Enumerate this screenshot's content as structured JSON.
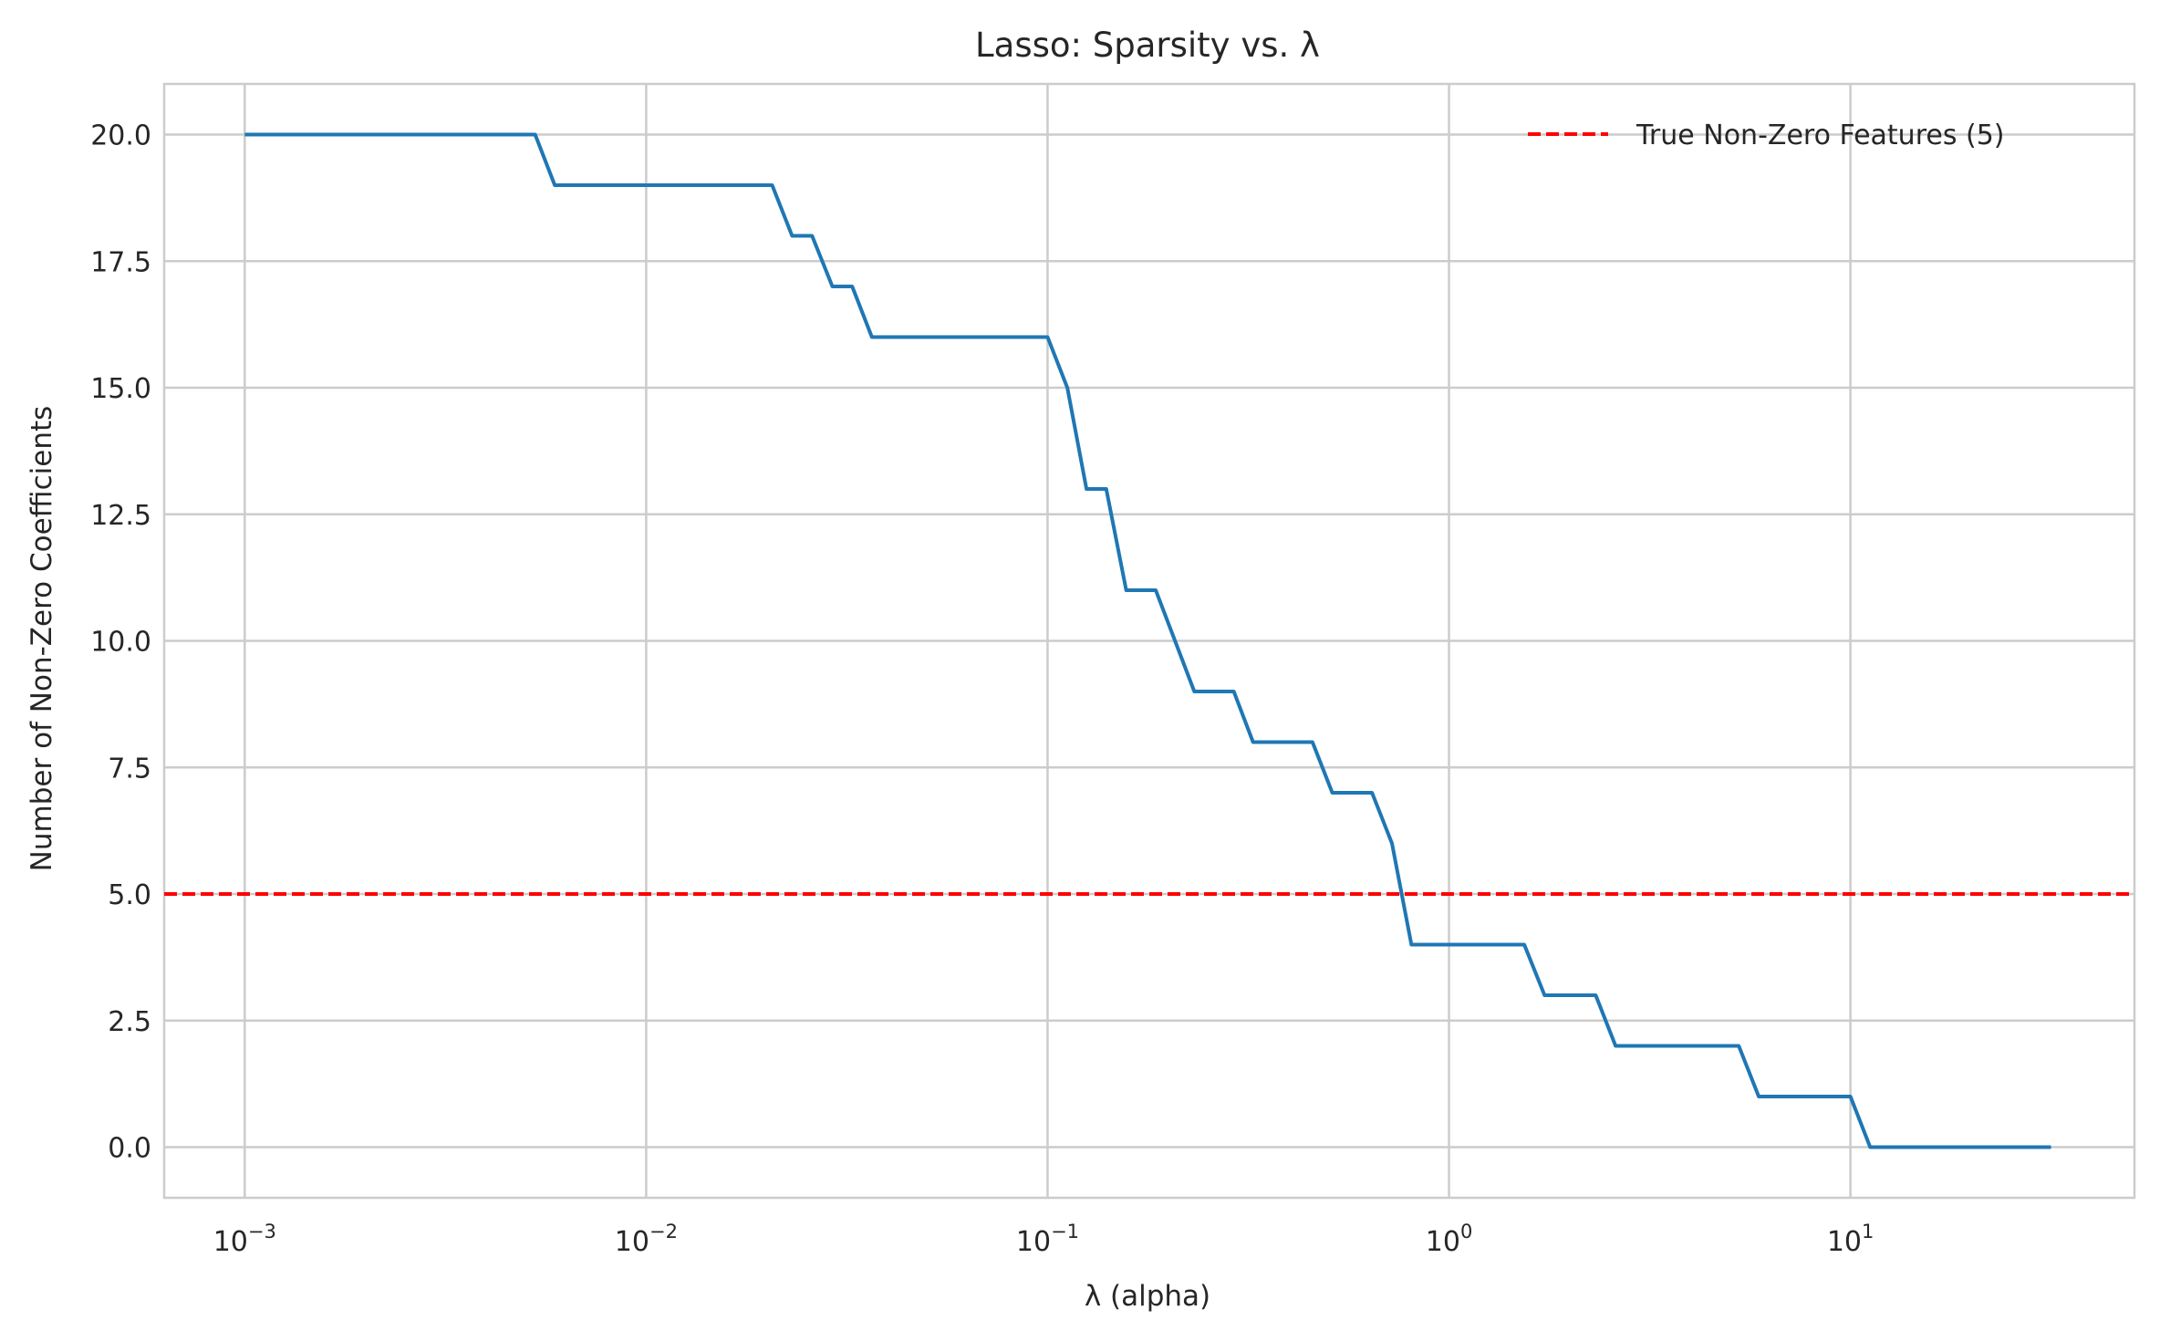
{
  "chart_data": {
    "type": "line",
    "title": "Lasso: Sparsity vs. λ",
    "xlabel": "λ (alpha)",
    "ylabel": "Number of Non-Zero Coefficients",
    "xscale": "log",
    "xlim": [
      0.00063,
      51
    ],
    "ylim": [
      -1,
      21
    ],
    "x_ticks": [
      {
        "value": 0.001,
        "base": "10",
        "exp": "−3"
      },
      {
        "value": 0.01,
        "base": "10",
        "exp": "−2"
      },
      {
        "value": 0.1,
        "base": "10",
        "exp": "−1"
      },
      {
        "value": 1,
        "base": "10",
        "exp": "0"
      },
      {
        "value": 10,
        "base": "10",
        "exp": "1"
      }
    ],
    "y_ticks": [
      0.0,
      2.5,
      5.0,
      7.5,
      10.0,
      12.5,
      15.0,
      17.5,
      20.0
    ],
    "y_tick_labels": [
      "0.0",
      "2.5",
      "5.0",
      "7.5",
      "10.0",
      "12.5",
      "15.0",
      "17.5",
      "20.0"
    ],
    "grid": true,
    "legend_position": "upper-right",
    "colors": {
      "series": "#1f77b4",
      "reference": "#ff0000",
      "grid": "#cccccc",
      "frame": "#cccccc"
    },
    "series": [
      {
        "x": [
          0.001,
          0.00529,
          0.00592,
          0.0206,
          0.0231,
          0.0259,
          0.0291,
          0.0326,
          0.0365,
          0.1,
          0.112,
          0.125,
          0.14,
          0.157,
          0.186,
          0.232,
          0.291,
          0.325,
          0.457,
          0.512,
          0.643,
          0.721,
          0.806,
          1.54,
          1.73,
          2.32,
          2.6,
          5.27,
          5.91,
          10.0,
          11.2,
          31.6
        ],
        "y": [
          20,
          20,
          19,
          19,
          18,
          18,
          17,
          17,
          16,
          16,
          15,
          13,
          13,
          11,
          11,
          9,
          9,
          8,
          8,
          7,
          7,
          6,
          4,
          4,
          3,
          3,
          2,
          2,
          1,
          1,
          0,
          0
        ]
      }
    ],
    "reference_line": {
      "name": "True Non-Zero Features (5)",
      "y": 5,
      "style": "dashed"
    }
  }
}
